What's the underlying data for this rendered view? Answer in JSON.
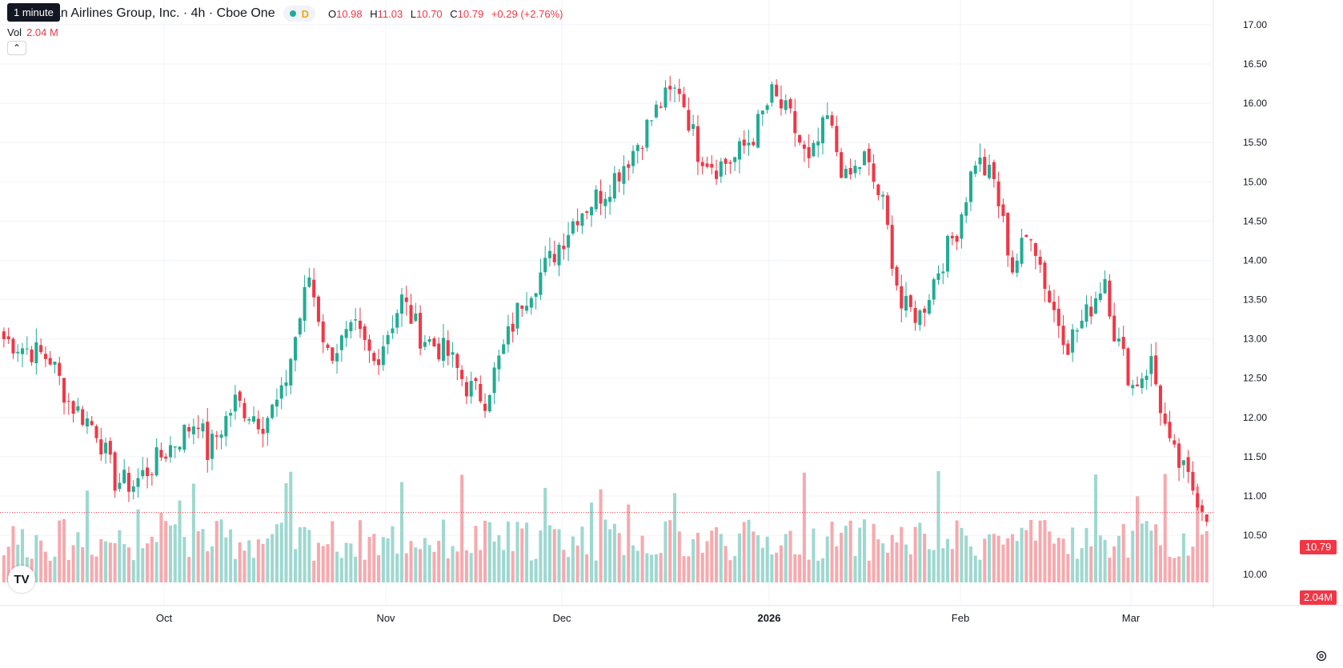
{
  "header": {
    "timeframe_tooltip": "1 minute",
    "symbol_title": "can Airlines Group, Inc. · 4h · Cboe One",
    "status_label": "D",
    "ohlc": {
      "o_label": "O",
      "o_value": "10.98",
      "h_label": "H",
      "h_value": "11.03",
      "l_label": "L",
      "l_value": "10.70",
      "c_label": "C",
      "c_value": "10.79",
      "change": "+0.29 (+2.76%)"
    },
    "volume_label": "Vol",
    "volume_value": "2.04 M",
    "collapse_icon": "chevron-up-icon"
  },
  "colors": {
    "up": "#22ab94",
    "down": "#f23645",
    "vol_up": "#9ed8d0",
    "vol_down": "#f7a9ad",
    "grid": "#f0f3fa",
    "axis_text": "#131722"
  },
  "chart_data": {
    "type": "candlestick",
    "timeframe": "4h",
    "price_axis": {
      "ticks": [
        "17.00",
        "16.50",
        "16.00",
        "15.50",
        "15.00",
        "14.50",
        "14.00",
        "13.50",
        "13.00",
        "12.50",
        "12.00",
        "11.50",
        "11.00",
        "10.50",
        "10.00"
      ],
      "range": [
        9.9,
        17.05
      ]
    },
    "time_axis": {
      "labels": [
        "Oct",
        "Nov",
        "Dec",
        "2026",
        "Feb",
        "Mar"
      ],
      "bold": [
        "2026"
      ]
    },
    "last_price": "10.79",
    "last_volume": "2.04M",
    "waypoints": [
      [
        0,
        13.0
      ],
      [
        10,
        12.75
      ],
      [
        14,
        12.2
      ],
      [
        20,
        11.85
      ],
      [
        24,
        11.2
      ],
      [
        28,
        11.15
      ],
      [
        38,
        11.75
      ],
      [
        42,
        12.0
      ],
      [
        44,
        11.55
      ],
      [
        50,
        12.2
      ],
      [
        56,
        11.95
      ],
      [
        60,
        12.25
      ],
      [
        66,
        13.8
      ],
      [
        70,
        12.8
      ],
      [
        76,
        13.1
      ],
      [
        80,
        12.7
      ],
      [
        86,
        13.5
      ],
      [
        90,
        13.05
      ],
      [
        96,
        12.8
      ],
      [
        100,
        12.4
      ],
      [
        104,
        12.25
      ],
      [
        112,
        13.5
      ],
      [
        118,
        14.0
      ],
      [
        124,
        14.6
      ],
      [
        130,
        14.9
      ],
      [
        136,
        15.4
      ],
      [
        142,
        16.0
      ],
      [
        146,
        16.2
      ],
      [
        150,
        15.4
      ],
      [
        154,
        15.2
      ],
      [
        158,
        15.3
      ],
      [
        162,
        15.6
      ],
      [
        166,
        16.1
      ],
      [
        170,
        15.8
      ],
      [
        174,
        15.2
      ],
      [
        178,
        15.8
      ],
      [
        182,
        15.0
      ],
      [
        186,
        15.3
      ],
      [
        190,
        14.7
      ],
      [
        194,
        13.4
      ],
      [
        198,
        13.3
      ],
      [
        202,
        13.9
      ],
      [
        206,
        14.4
      ],
      [
        210,
        15.3
      ],
      [
        214,
        15.0
      ],
      [
        218,
        13.9
      ],
      [
        222,
        14.4
      ],
      [
        226,
        13.5
      ],
      [
        230,
        12.95
      ],
      [
        234,
        13.3
      ],
      [
        238,
        13.8
      ],
      [
        240,
        13.1
      ],
      [
        244,
        12.4
      ],
      [
        248,
        12.7
      ],
      [
        252,
        11.6
      ],
      [
        256,
        11.2
      ],
      [
        260,
        10.8
      ],
      [
        264,
        11.0
      ],
      [
        268,
        10.45
      ],
      [
        272,
        10.5
      ]
    ],
    "volume_range_m": [
      0,
      10.5
    ]
  }
}
